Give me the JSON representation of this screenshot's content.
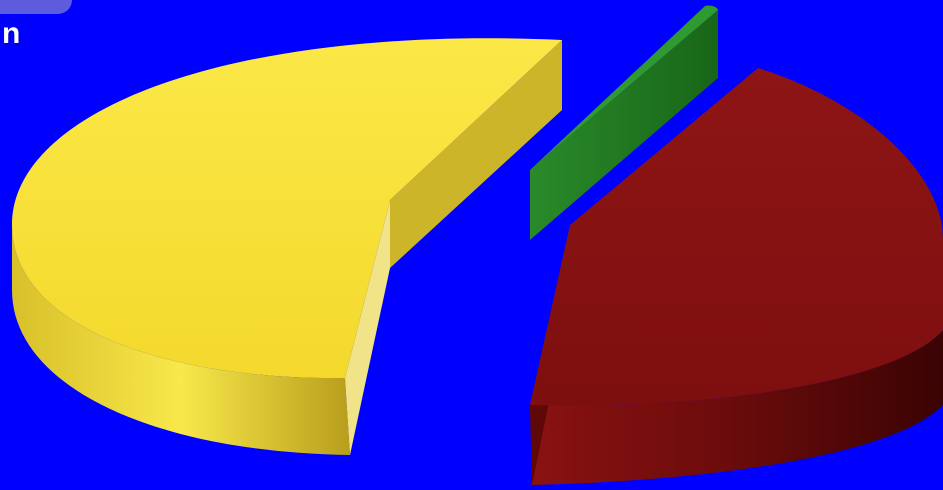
{
  "page": {
    "corner_text": "n"
  },
  "chart_data": {
    "type": "pie",
    "style": "3d-exploded",
    "background_color": "#0000ff",
    "slices": [
      {
        "value": 52,
        "color": "#f7e232"
      },
      {
        "value": 3,
        "color": "#1f7a1f"
      },
      {
        "value": 45,
        "color": "#8b1111"
      }
    ]
  }
}
